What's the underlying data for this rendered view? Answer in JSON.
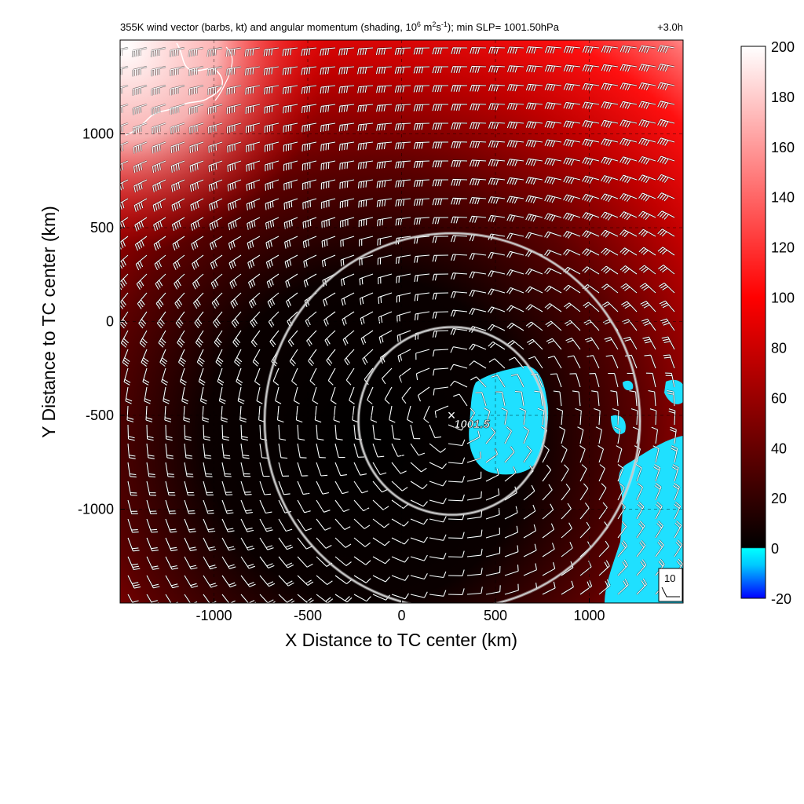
{
  "chart_data": {
    "type": "heatmap",
    "title": "355K wind vector (barbs, kt) and angular momentum (shading, 10^6 m^2 s^-1); min SLP= 1001.50hPa",
    "title_parts": {
      "prefix": "355K wind vector (barbs, kt) and angular momentum (shading, 10",
      "exp1": "6",
      "mid1": " m",
      "exp2": "2",
      "mid2": "s",
      "exp3": "-1",
      "suffix": "); min SLP= 1001.50hPa"
    },
    "time_label": "+3.0h",
    "xlabel": "X Distance to TC center (km)",
    "ylabel": "Y Distance to TC center (km)",
    "xlim": [
      -1500,
      1500
    ],
    "ylim": [
      -1500,
      1500
    ],
    "x_ticks": [
      -1000,
      -500,
      0,
      500,
      1000
    ],
    "y_ticks": [
      1000,
      500,
      0,
      -500,
      -1000
    ],
    "grid": true,
    "colorbar": {
      "min": -20,
      "max": 200,
      "ticks": [
        200,
        180,
        160,
        140,
        120,
        100,
        80,
        60,
        40,
        20,
        0,
        -20
      ],
      "colors": [
        "#0000ff",
        "#00ffff",
        "#000000",
        "#ff0000",
        "#ffffff"
      ]
    },
    "tc_center": {
      "x": 270,
      "y": -500,
      "marker": "×",
      "label": "1001.5"
    },
    "range_rings_km": [
      500,
      1000
    ],
    "ring_center": {
      "x": 270,
      "y": -530
    },
    "reference_barb": {
      "label": "10",
      "units": "kt"
    },
    "colors": {
      "accent_red": "#ff0000",
      "low_cyan": "#1fe0ff",
      "ring": "#c8c8c8"
    }
  }
}
